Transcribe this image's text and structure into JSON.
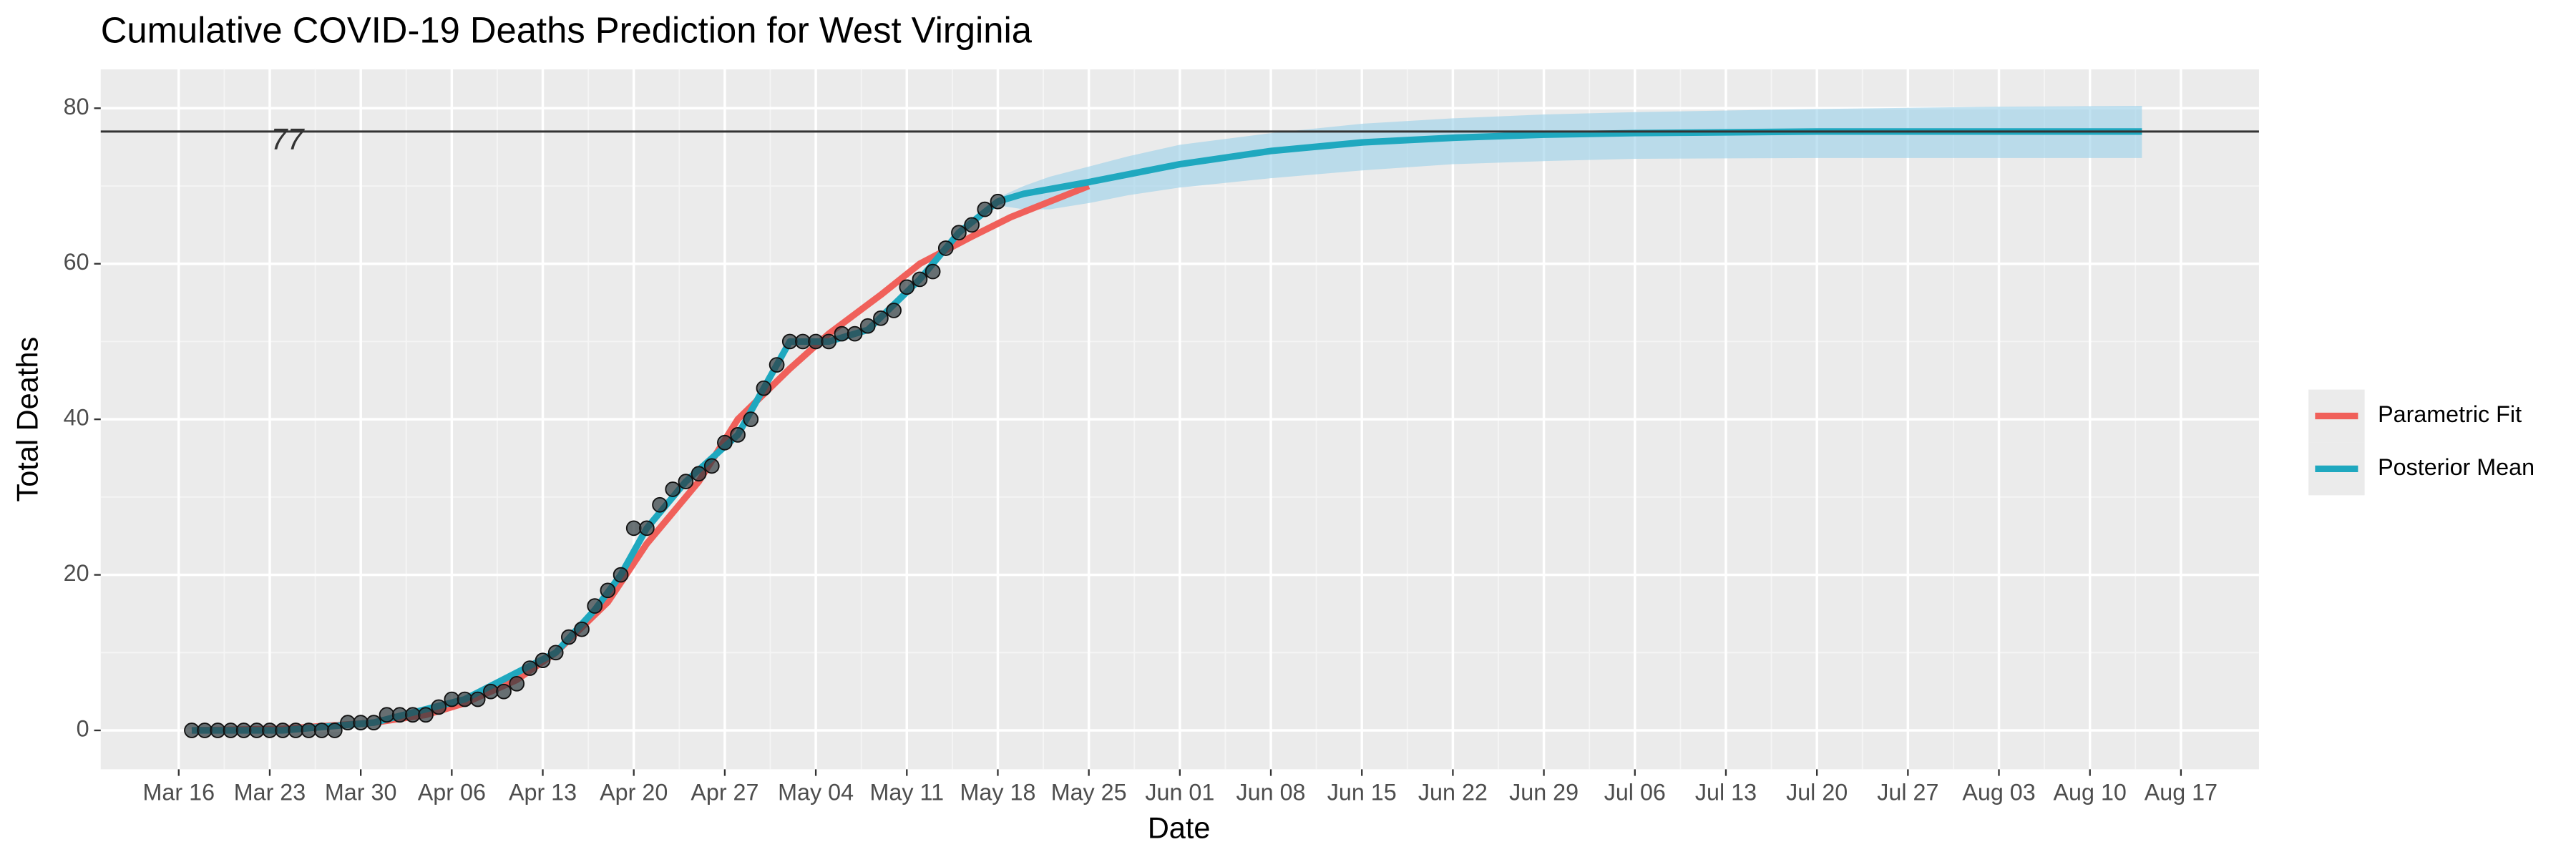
{
  "chart_data": {
    "type": "line",
    "title": "Cumulative COVID-19 Deaths Prediction for West Virginia",
    "xlabel": "Date",
    "ylabel": "Total Deaths",
    "xlim": [
      "Mar 10",
      "Aug 23"
    ],
    "ylim": [
      -5,
      85
    ],
    "xticks": [
      "Mar 16",
      "Mar 23",
      "Mar 30",
      "Apr 06",
      "Apr 13",
      "Apr 20",
      "Apr 27",
      "May 04",
      "May 11",
      "May 18",
      "May 25",
      "Jun 01",
      "Jun 08",
      "Jun 15",
      "Jun 22",
      "Jun 29",
      "Jul 06",
      "Jul 13",
      "Jul 20",
      "Jul 27",
      "Aug 03",
      "Aug 10",
      "Aug 17"
    ],
    "yticks": [
      0,
      20,
      40,
      60,
      80
    ],
    "grid": true,
    "legend": "right",
    "hline": 77,
    "band": {
      "color": "#9fd3ea",
      "x": [
        "May 18",
        "May 20",
        "May 22",
        "May 25",
        "May 28",
        "Jun 01",
        "Jun 08",
        "Jun 15",
        "Jun 22",
        "Jun 29",
        "Jul 06",
        "Jul 20",
        "Aug 03",
        "Aug 14"
      ],
      "lower": [
        67.5,
        67,
        67,
        67.8,
        68.8,
        69.8,
        71,
        72,
        72.8,
        73.2,
        73.5,
        73.6,
        73.6,
        73.6
      ],
      "upper": [
        68.5,
        70,
        71.2,
        72.5,
        73.8,
        75.3,
        76.8,
        78,
        78.7,
        79.2,
        79.5,
        79.9,
        80.2,
        80.3
      ]
    },
    "series": [
      {
        "name": "Parametric Fit",
        "color": "#f0605a",
        "x": [
          "Mar 17",
          "Mar 24",
          "Mar 31",
          "Apr 04",
          "Apr 07",
          "Apr 11",
          "Apr 14",
          "Apr 18",
          "Apr 21",
          "Apr 25",
          "Apr 28",
          "May 02",
          "May 05",
          "May 09",
          "May 12",
          "May 16",
          "May 19",
          "May 25"
        ],
        "values": [
          0,
          0.2,
          1,
          2,
          3.5,
          6.5,
          10,
          16.5,
          24,
          32,
          40,
          46.5,
          51,
          56,
          60,
          63.5,
          66,
          70
        ]
      },
      {
        "name": "Posterior Mean",
        "color": "#1fa8bf",
        "x": [
          "Mar 17",
          "Mar 24",
          "Mar 31",
          "Apr 07",
          "Apr 14",
          "Apr 17",
          "Apr 19",
          "Apr 21",
          "Apr 24",
          "Apr 28",
          "Apr 30",
          "May 02",
          "May 05",
          "May 08",
          "May 12",
          "May 15",
          "May 18",
          "May 20",
          "May 25",
          "Jun 01",
          "Jun 08",
          "Jun 15",
          "Jun 22",
          "Jun 29",
          "Jul 06",
          "Jul 20",
          "Aug 14"
        ],
        "values": [
          0,
          0,
          1,
          4,
          10,
          15.5,
          20,
          26,
          32,
          38,
          44,
          50,
          50,
          51.5,
          58,
          64,
          68,
          69,
          70.5,
          72.8,
          74.5,
          75.6,
          76.2,
          76.6,
          76.8,
          77,
          77
        ]
      }
    ],
    "points": {
      "color": "#2f3a3e",
      "x": [
        "Mar 17",
        "Mar 18",
        "Mar 19",
        "Mar 20",
        "Mar 21",
        "Mar 22",
        "Mar 23",
        "Mar 24",
        "Mar 25",
        "Mar 26",
        "Mar 27",
        "Mar 28",
        "Mar 29",
        "Mar 30",
        "Mar 31",
        "Apr 01",
        "Apr 02",
        "Apr 03",
        "Apr 04",
        "Apr 05",
        "Apr 06",
        "Apr 07",
        "Apr 08",
        "Apr 09",
        "Apr 10",
        "Apr 11",
        "Apr 12",
        "Apr 13",
        "Apr 14",
        "Apr 15",
        "Apr 16",
        "Apr 17",
        "Apr 18",
        "Apr 19",
        "Apr 20",
        "Apr 21",
        "Apr 22",
        "Apr 23",
        "Apr 24",
        "Apr 25",
        "Apr 26",
        "Apr 27",
        "Apr 28",
        "Apr 29",
        "Apr 30",
        "May 01",
        "May 02",
        "May 03",
        "May 04",
        "May 05",
        "May 06",
        "May 07",
        "May 08",
        "May 09",
        "May 10",
        "May 11",
        "May 12",
        "May 13",
        "May 14",
        "May 15",
        "May 16",
        "May 17",
        "May 18"
      ],
      "values": [
        0,
        0,
        0,
        0,
        0,
        0,
        0,
        0,
        0,
        0,
        0,
        0,
        1,
        1,
        1,
        2,
        2,
        2,
        2,
        3,
        4,
        4,
        4,
        5,
        5,
        6,
        8,
        9,
        10,
        12,
        13,
        16,
        18,
        20,
        26,
        26,
        29,
        31,
        32,
        33,
        34,
        37,
        38,
        40,
        44,
        47,
        50,
        50,
        50,
        50,
        51,
        51,
        52,
        53,
        54,
        57,
        58,
        59,
        62,
        64,
        65,
        67,
        68
      ]
    }
  }
}
